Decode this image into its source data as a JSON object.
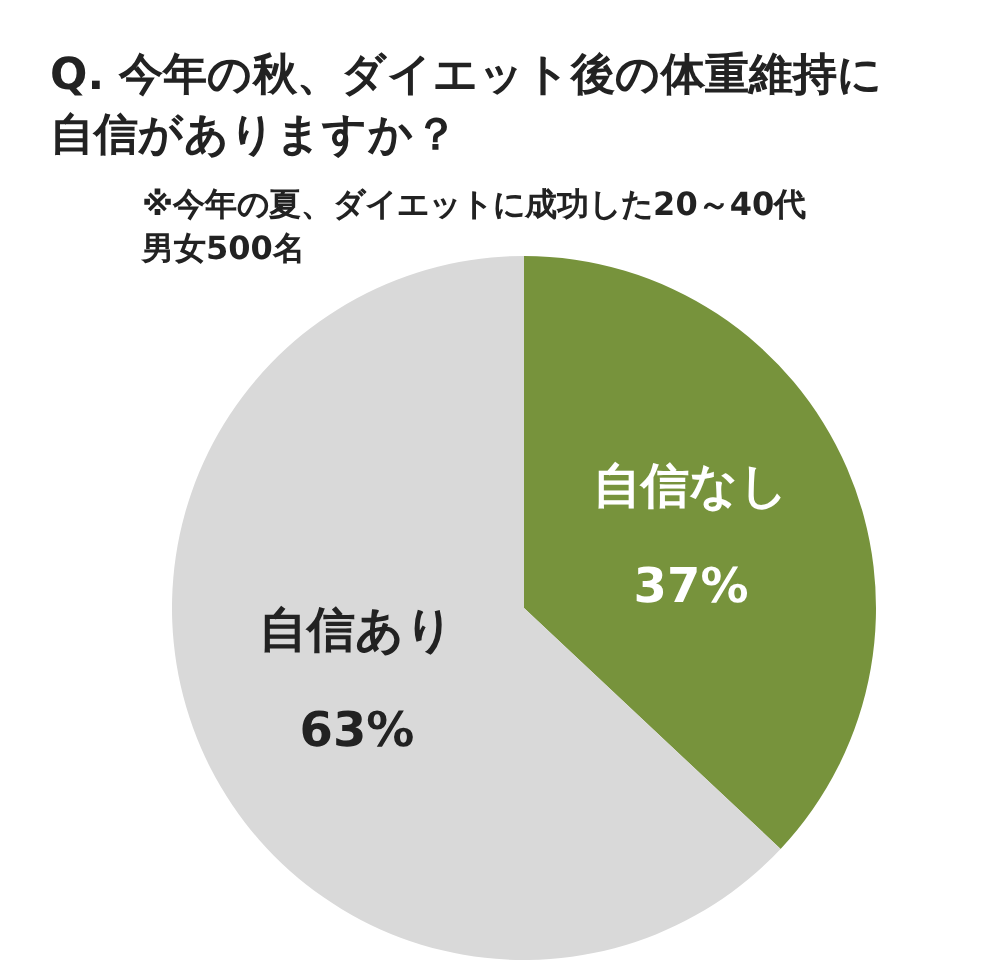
{
  "chart_data": {
    "type": "pie",
    "title": "Q. 今年の秋、ダイエット後の体重維持に自信がありますか？",
    "subtitle": "※今年の夏、ダイエットに成功した20～40代男女500名",
    "categories": [
      "自信なし",
      "自信あり"
    ],
    "values": [
      37,
      63
    ],
    "colors": [
      "#77933c",
      "#d9d9d9"
    ],
    "value_labels": [
      "37%",
      "63%"
    ],
    "legend": false
  }
}
